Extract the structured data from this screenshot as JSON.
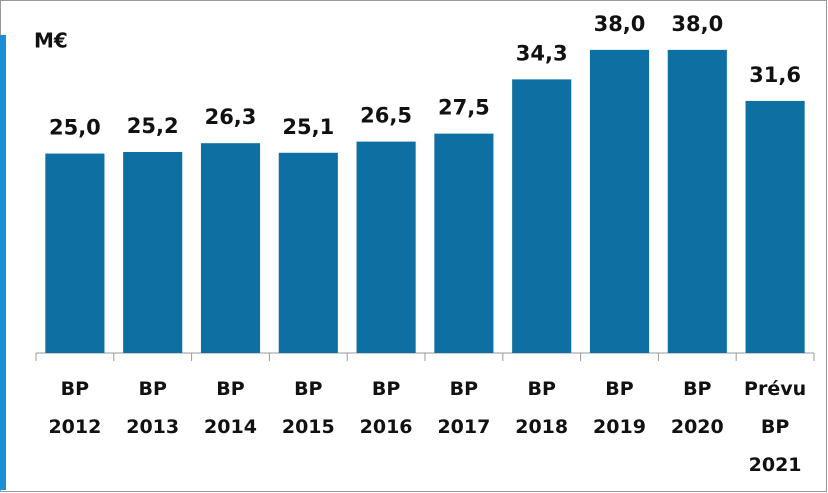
{
  "chart_data": {
    "type": "bar",
    "y_label": "M€",
    "categories": [
      "BP\n2012",
      "BP\n2013",
      "BP\n2014",
      "BP\n2015",
      "BP\n2016",
      "BP\n2017",
      "BP\n2018",
      "BP\n2019",
      "BP\n2020",
      "Prévu\nBP\n2021"
    ],
    "values": [
      25.0,
      25.2,
      26.3,
      25.1,
      26.5,
      27.5,
      34.3,
      38.0,
      38.0,
      31.6
    ],
    "value_labels": [
      "25,0",
      "25,2",
      "26,3",
      "25,1",
      "26,5",
      "27,5",
      "34,3",
      "38,0",
      "38,0",
      "31,6"
    ],
    "color": "#0d6fa2",
    "ylim": [
      0,
      44
    ]
  }
}
